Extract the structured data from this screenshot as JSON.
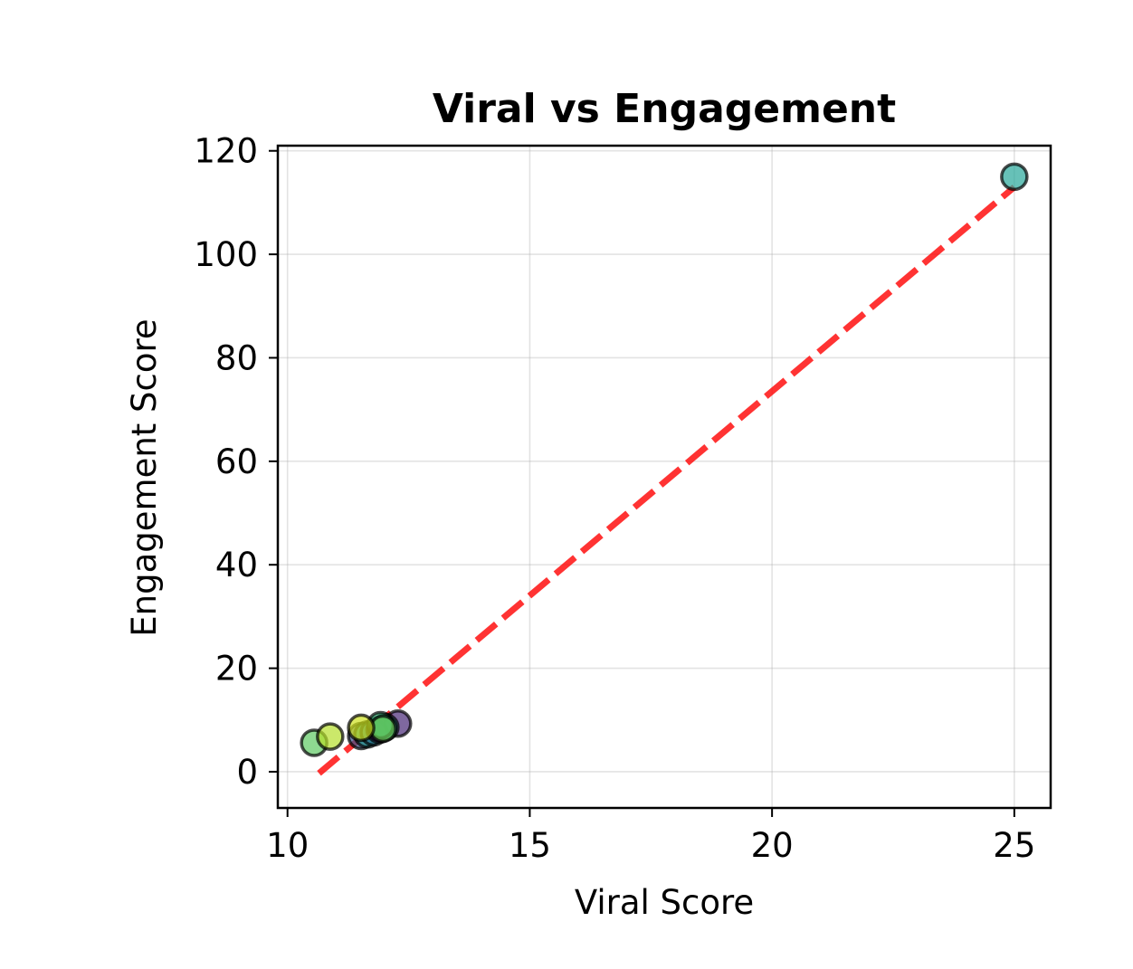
{
  "chart_data": {
    "type": "scatter",
    "title": "Viral vs Engagement",
    "xlabel": "Viral Score",
    "ylabel": "Engagement Score",
    "xlim": [
      9.8,
      25.75
    ],
    "ylim": [
      -7,
      121
    ],
    "xticks": [
      10,
      15,
      20,
      25
    ],
    "yticks": [
      0,
      20,
      40,
      60,
      80,
      100,
      120
    ],
    "grid": true,
    "points": [
      {
        "x": 10.55,
        "y": 5.6,
        "color": "#5ec962"
      },
      {
        "x": 10.88,
        "y": 6.8,
        "color": "#b5de2b"
      },
      {
        "x": 11.52,
        "y": 6.9,
        "color": "#3b528b"
      },
      {
        "x": 11.65,
        "y": 7.2,
        "color": "#21918c"
      },
      {
        "x": 11.78,
        "y": 7.6,
        "color": "#2c728e"
      },
      {
        "x": 11.9,
        "y": 8.1,
        "color": "#440154"
      },
      {
        "x": 12.28,
        "y": 9.3,
        "color": "#482878"
      },
      {
        "x": 12.02,
        "y": 8.6,
        "color": "#1f9e89"
      },
      {
        "x": 11.92,
        "y": 9.0,
        "color": "#35b779"
      },
      {
        "x": 11.97,
        "y": 8.3,
        "color": "#6ece58"
      },
      {
        "x": 11.52,
        "y": 8.5,
        "color": "#cde11d"
      },
      {
        "x": 25.0,
        "y": 115.0,
        "color": "#26a69a"
      }
    ],
    "trend_line": {
      "x1": 10.65,
      "y1": -0.3,
      "x2": 25.0,
      "y2": 113.0,
      "color": "#ff0000",
      "style": "dashed"
    }
  }
}
